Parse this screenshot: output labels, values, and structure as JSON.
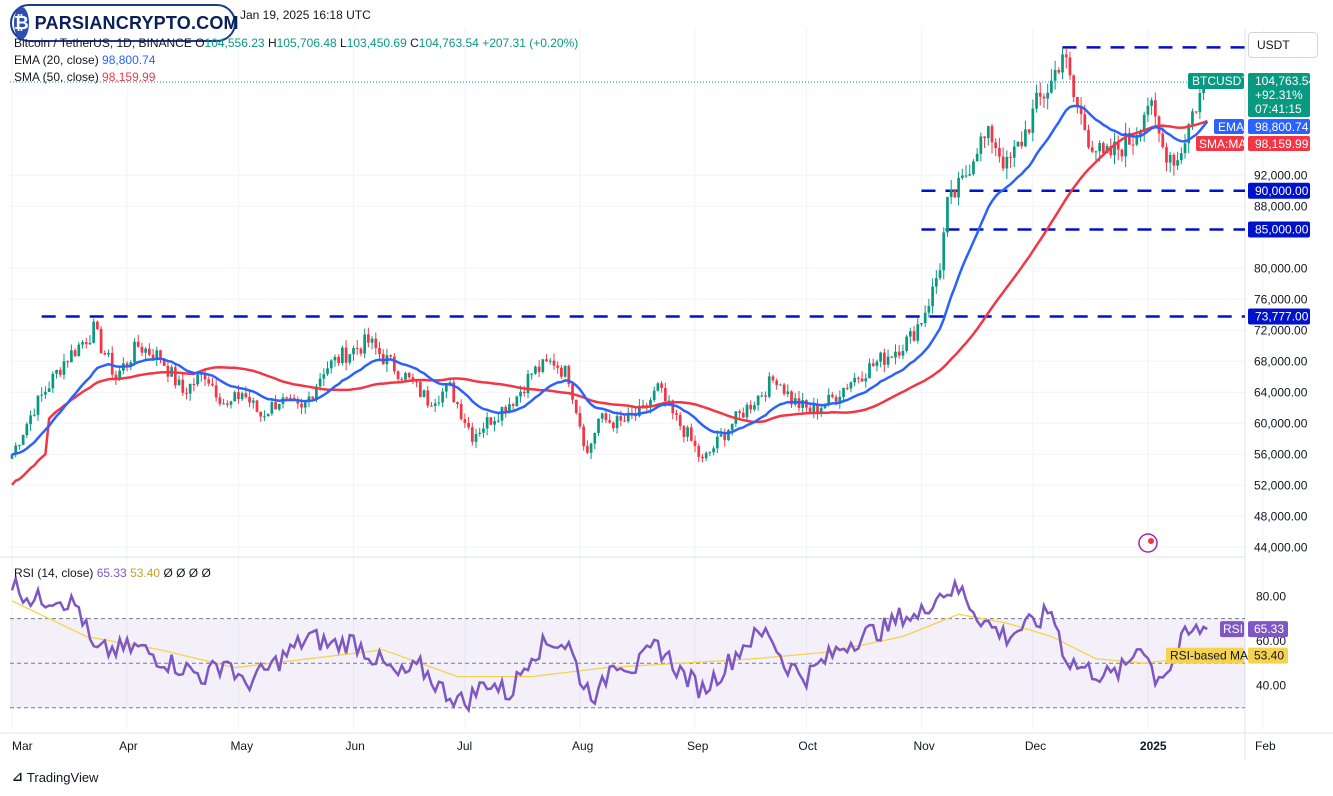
{
  "header": {
    "datetime": "Jan 19, 2025 16:18 UTC",
    "symbol_line": "Bitcoin / TetherUS, 1D, BINANCE",
    "open_label": "O",
    "open": "104,556.23",
    "high_label": "H",
    "high": "105,706.48",
    "low_label": "L",
    "low": "103,450.69",
    "close_label": "C",
    "close": "104,763.54",
    "change": "+207.31 (+0.20%)",
    "ema_label": "EMA (20, close)",
    "ema_value": "98,800.74",
    "sma_label": "SMA (50, close)",
    "sma_value": "98,159.99",
    "rsi_label": "RSI (14, close)",
    "rsi_value": "65.33",
    "rsi_ma_value": "53.40",
    "rsi_extras": "Ø Ø Ø Ø"
  },
  "logo_text": "PARSIANCRYPTO.COM",
  "currency_button": "USDT",
  "brand": "TradingView",
  "colors": {
    "up": "#089981",
    "down": "#f23645",
    "ema": "#2962ff",
    "sma": "#f23645",
    "rsi": "#7e57c2",
    "rsi_ma": "#f5d34f",
    "level": "#0011cc"
  },
  "chart_data": {
    "type": "candlestick",
    "title": "Bitcoin / TetherUS, 1D, BINANCE",
    "x_ticks": [
      "Mar",
      "Apr",
      "May",
      "Jun",
      "Jul",
      "Aug",
      "Sep",
      "Oct",
      "Nov",
      "Dec",
      "2025",
      "Feb"
    ],
    "y_ticks": [
      "92,000.00",
      "88,000.00",
      "80,000.00",
      "76,000.00",
      "72,000.00",
      "68,000.00",
      "64,000.00",
      "60,000.00",
      "56,000.00",
      "52,000.00",
      "48,000.00",
      "44,000.00"
    ],
    "y_tick_values": [
      92000,
      88000,
      80000,
      76000,
      72000,
      68000,
      64000,
      60000,
      56000,
      52000,
      48000,
      44000
    ],
    "ylim": [
      43000,
      111000
    ],
    "price_path": [
      [
        0,
        56000
      ],
      [
        6,
        62000
      ],
      [
        14,
        68000
      ],
      [
        22,
        72000
      ],
      [
        28,
        66000
      ],
      [
        34,
        70000
      ],
      [
        40,
        68500
      ],
      [
        46,
        64000
      ],
      [
        52,
        66500
      ],
      [
        58,
        62000
      ],
      [
        62,
        64000
      ],
      [
        67,
        61000
      ],
      [
        72,
        63000
      ],
      [
        78,
        61500
      ],
      [
        84,
        67000
      ],
      [
        90,
        69000
      ],
      [
        96,
        70500
      ],
      [
        100,
        68500
      ],
      [
        106,
        66000
      ],
      [
        112,
        63000
      ],
      [
        118,
        64500
      ],
      [
        124,
        58500
      ],
      [
        130,
        61000
      ],
      [
        136,
        63500
      ],
      [
        140,
        66500
      ],
      [
        146,
        68000
      ],
      [
        150,
        66000
      ],
      [
        155,
        56000
      ],
      [
        158,
        60500
      ],
      [
        164,
        60000
      ],
      [
        170,
        61500
      ],
      [
        174,
        64500
      ],
      [
        178,
        61000
      ],
      [
        182,
        58500
      ],
      [
        186,
        55000
      ],
      [
        190,
        57500
      ],
      [
        194,
        60000
      ],
      [
        200,
        63000
      ],
      [
        206,
        66000
      ],
      [
        210,
        63000
      ],
      [
        215,
        61500
      ],
      [
        220,
        62800
      ],
      [
        226,
        65500
      ],
      [
        232,
        67500
      ],
      [
        238,
        69500
      ],
      [
        242,
        71000
      ],
      [
        245,
        73500
      ],
      [
        248,
        77000
      ],
      [
        250,
        80500
      ],
      [
        252,
        88000
      ],
      [
        256,
        91000
      ],
      [
        260,
        96000
      ],
      [
        264,
        97000
      ],
      [
        268,
        93000
      ],
      [
        272,
        96500
      ],
      [
        276,
        101000
      ],
      [
        280,
        104000
      ],
      [
        283,
        108000
      ],
      [
        286,
        102000
      ],
      [
        290,
        97000
      ],
      [
        294,
        94000
      ],
      [
        298,
        95500
      ],
      [
        302,
        96800
      ],
      [
        306,
        101500
      ],
      [
        310,
        95500
      ],
      [
        314,
        94000
      ],
      [
        318,
        100000
      ],
      [
        322,
        104600
      ]
    ],
    "series": [
      {
        "name": "EMA (20, close)",
        "last": 98800.74
      },
      {
        "name": "SMA (50, close)",
        "last": 98159.99
      }
    ],
    "horizontal_levels": [
      {
        "label": "73,777.00",
        "value": 73777
      },
      {
        "label": "85,000.00",
        "value": 85000
      },
      {
        "label": "90,000.00",
        "value": 90000
      },
      {
        "label": "",
        "value": 108500
      }
    ],
    "price_labels": {
      "symbol": "BTCUSDT",
      "price": "104,763.54",
      "pct": "+92.31%",
      "countdown": "07:41:15",
      "ema_tag": "EMA",
      "ema": "98,800.74",
      "sma_tag": "SMA:MA",
      "sma": "98,159.99"
    },
    "rsi": {
      "ylim": [
        20,
        95
      ],
      "ticks": [
        "80.00",
        "60.00",
        "40.00"
      ],
      "tick_values": [
        80,
        60,
        40
      ],
      "band": [
        30,
        70
      ],
      "tag": "RSI",
      "value": "65.33",
      "ma_tag": "RSI-based MA",
      "ma_value": "53.40",
      "path": [
        [
          0,
          86
        ],
        [
          6,
          78
        ],
        [
          12,
          80
        ],
        [
          18,
          75
        ],
        [
          22,
          55
        ],
        [
          28,
          56
        ],
        [
          34,
          57
        ],
        [
          40,
          52
        ],
        [
          46,
          48
        ],
        [
          52,
          44
        ],
        [
          58,
          52
        ],
        [
          62,
          40
        ],
        [
          68,
          46
        ],
        [
          74,
          54
        ],
        [
          80,
          62
        ],
        [
          86,
          58
        ],
        [
          92,
          60
        ],
        [
          98,
          52
        ],
        [
          104,
          44
        ],
        [
          110,
          48
        ],
        [
          116,
          38
        ],
        [
          122,
          32
        ],
        [
          128,
          42
        ],
        [
          134,
          36
        ],
        [
          140,
          55
        ],
        [
          146,
          60
        ],
        [
          150,
          58
        ],
        [
          154,
          40
        ],
        [
          158,
          35
        ],
        [
          162,
          52
        ],
        [
          168,
          48
        ],
        [
          174,
          58
        ],
        [
          180,
          46
        ],
        [
          186,
          38
        ],
        [
          192,
          48
        ],
        [
          198,
          60
        ],
        [
          204,
          64
        ],
        [
          208,
          50
        ],
        [
          214,
          44
        ],
        [
          218,
          50
        ],
        [
          224,
          58
        ],
        [
          230,
          63
        ],
        [
          236,
          66
        ],
        [
          240,
          72
        ],
        [
          244,
          70
        ],
        [
          248,
          79
        ],
        [
          252,
          83
        ],
        [
          256,
          82
        ],
        [
          260,
          72
        ],
        [
          264,
          66
        ],
        [
          268,
          62
        ],
        [
          272,
          66
        ],
        [
          276,
          68
        ],
        [
          280,
          74
        ],
        [
          284,
          52
        ],
        [
          288,
          48
        ],
        [
          292,
          46
        ],
        [
          296,
          44
        ],
        [
          300,
          48
        ],
        [
          304,
          60
        ],
        [
          308,
          44
        ],
        [
          312,
          48
        ],
        [
          316,
          62
        ],
        [
          320,
          65.3
        ]
      ],
      "ma_path": [
        [
          0,
          78
        ],
        [
          20,
          62
        ],
        [
          40,
          56
        ],
        [
          60,
          48
        ],
        [
          80,
          52
        ],
        [
          100,
          56
        ],
        [
          120,
          44
        ],
        [
          140,
          44
        ],
        [
          160,
          48
        ],
        [
          180,
          50
        ],
        [
          200,
          52
        ],
        [
          220,
          55
        ],
        [
          240,
          62
        ],
        [
          255,
          72
        ],
        [
          268,
          68
        ],
        [
          280,
          62
        ],
        [
          292,
          52
        ],
        [
          305,
          50
        ],
        [
          322,
          53.4
        ]
      ]
    }
  }
}
